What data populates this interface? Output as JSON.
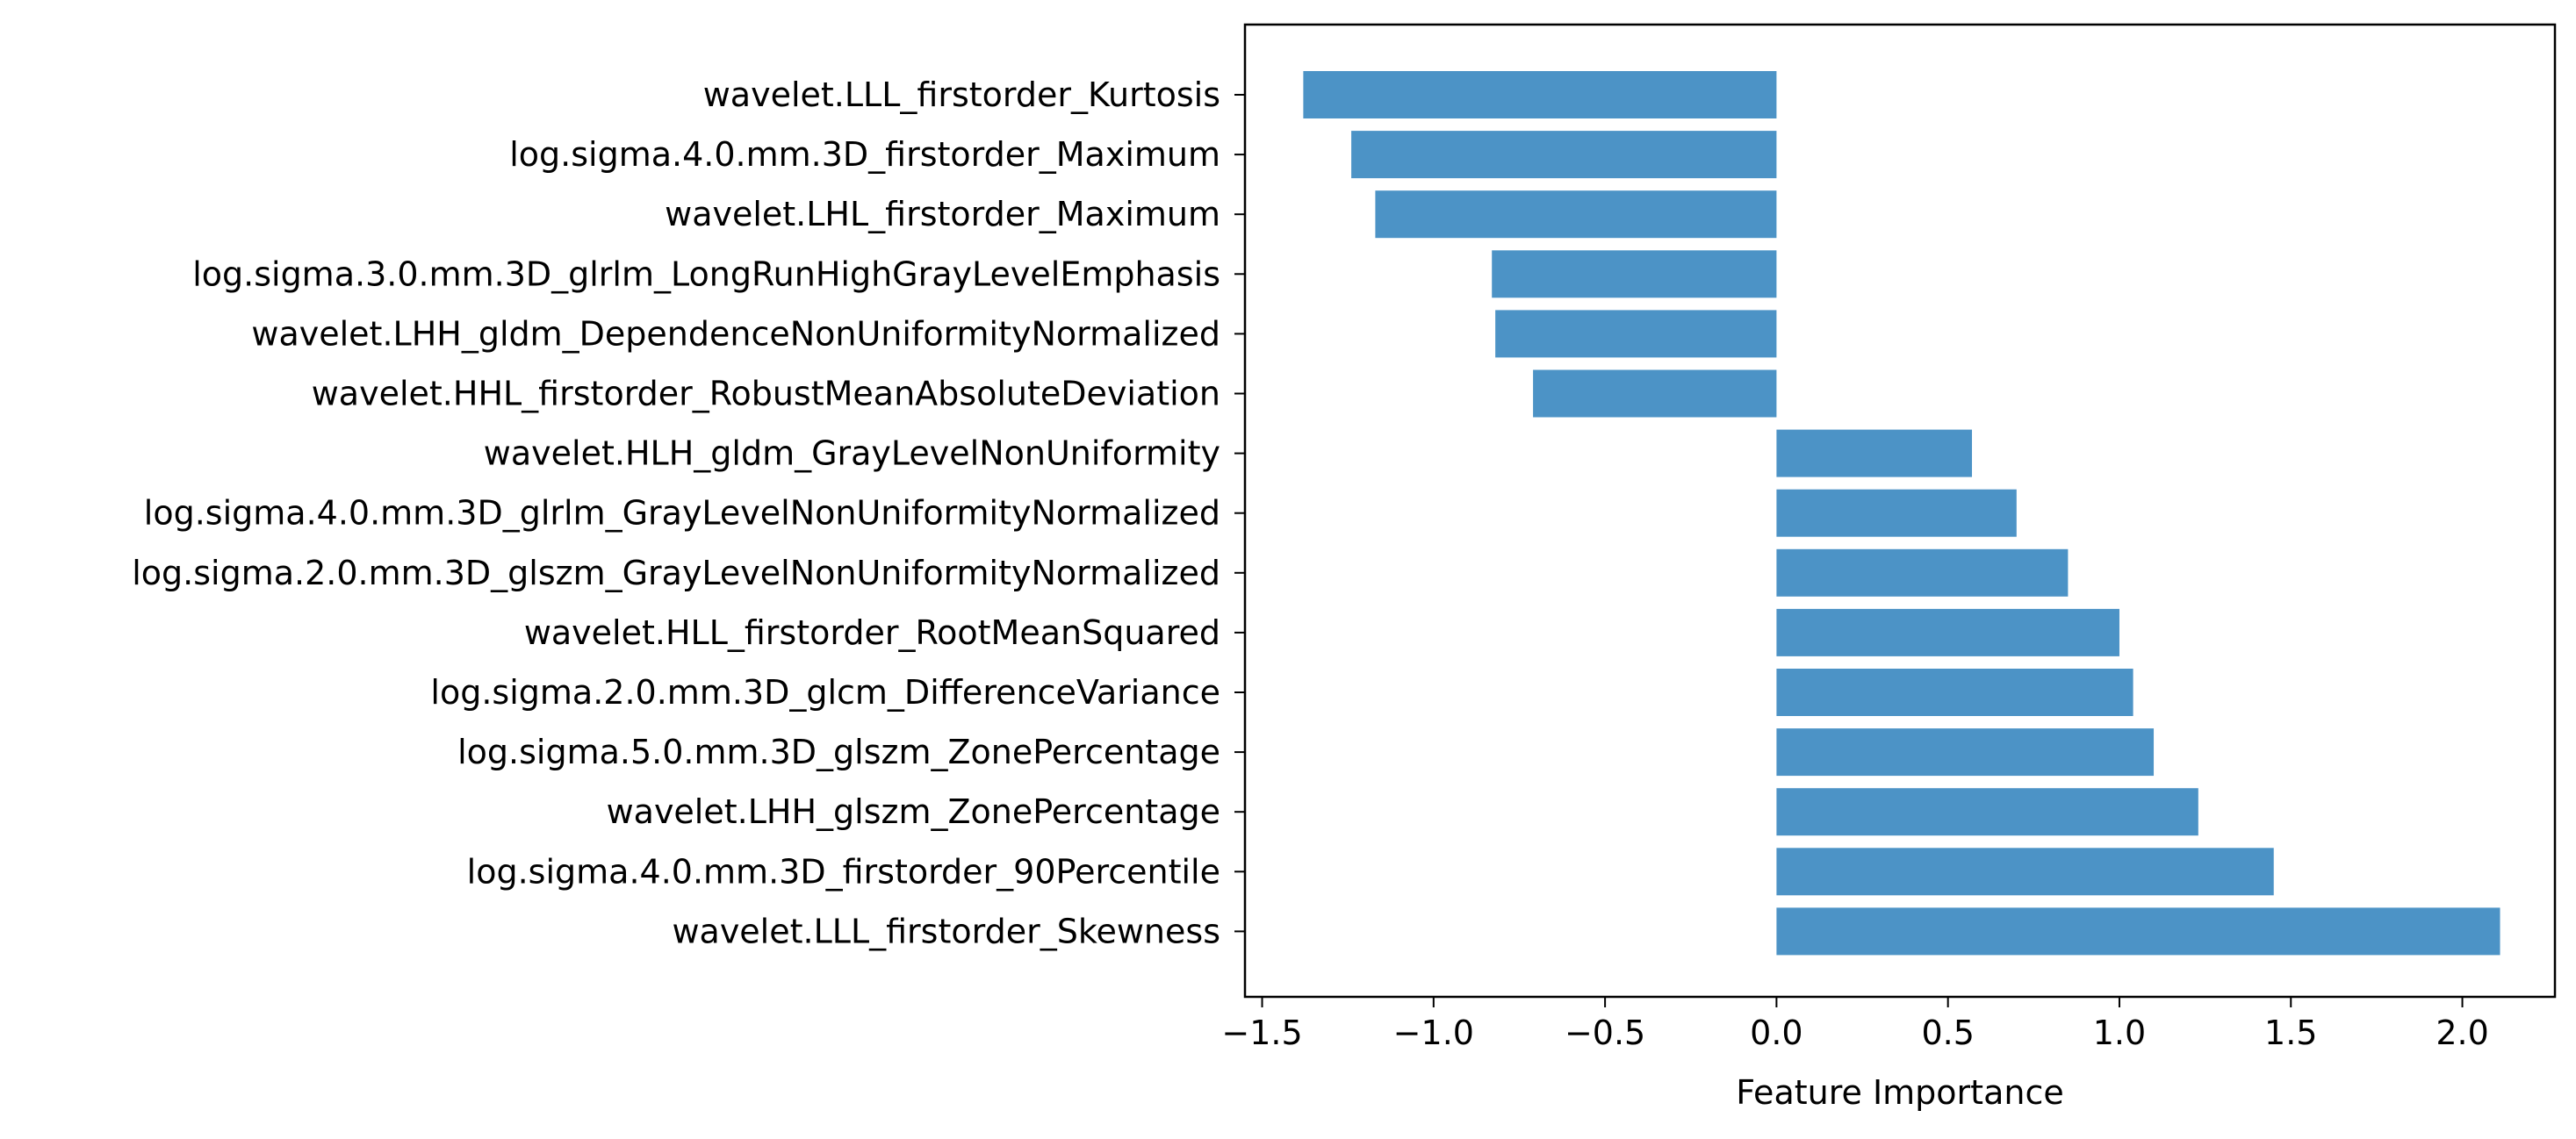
{
  "chart_data": {
    "type": "bar",
    "orientation": "horizontal",
    "title": "",
    "xlabel": "Feature Importance",
    "ylabel": "",
    "xlim": [
      -1.55,
      2.27
    ],
    "xticks": [
      -1.5,
      -1.0,
      -0.5,
      0.0,
      0.5,
      1.0,
      1.5,
      2.0
    ],
    "xtick_labels": [
      "−1.5",
      "−1.0",
      "−0.5",
      "0.0",
      "0.5",
      "1.0",
      "1.5",
      "2.0"
    ],
    "grid": false,
    "bar_color": "#4c93c6",
    "categories": [
      "wavelet.LLL_firstorder_Kurtosis",
      "log.sigma.4.0.mm.3D_firstorder_Maximum",
      "wavelet.LHL_firstorder_Maximum",
      "log.sigma.3.0.mm.3D_glrlm_LongRunHighGrayLevelEmphasis",
      "wavelet.LHH_gldm_DependenceNonUniformityNormalized",
      "wavelet.HHL_firstorder_RobustMeanAbsoluteDeviation",
      "wavelet.HLH_gldm_GrayLevelNonUniformity",
      "log.sigma.4.0.mm.3D_glrlm_GrayLevelNonUniformityNormalized",
      "log.sigma.2.0.mm.3D_glszm_GrayLevelNonUniformityNormalized",
      "wavelet.HLL_firstorder_RootMeanSquared",
      "log.sigma.2.0.mm.3D_glcm_DifferenceVariance",
      "log.sigma.5.0.mm.3D_glszm_ZonePercentage",
      "wavelet.LHH_glszm_ZonePercentage",
      "log.sigma.4.0.mm.3D_firstorder_90Percentile",
      "wavelet.LLL_firstorder_Skewness"
    ],
    "values": [
      -1.38,
      -1.24,
      -1.17,
      -0.83,
      -0.82,
      -0.71,
      0.57,
      0.7,
      0.85,
      1.0,
      1.04,
      1.1,
      1.23,
      1.45,
      2.11
    ]
  }
}
